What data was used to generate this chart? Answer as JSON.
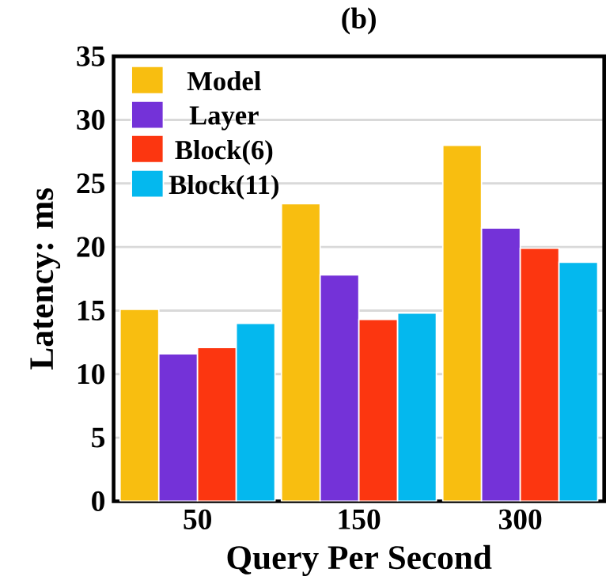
{
  "chart_data": {
    "type": "bar",
    "title": "(b)",
    "xlabel": "Query Per Second",
    "ylabel": "Latency: ms",
    "categories": [
      "50",
      "150",
      "300"
    ],
    "series": [
      {
        "name": "Model",
        "color": "#f8be10",
        "values": [
          15.1,
          23.4,
          28.0
        ]
      },
      {
        "name": "Layer",
        "color": "#7432d8",
        "values": [
          11.6,
          17.8,
          21.5
        ]
      },
      {
        "name": "Block(6)",
        "color": "#fc3610",
        "values": [
          12.1,
          14.3,
          19.9
        ]
      },
      {
        "name": "Block(11)",
        "color": "#04b8ee",
        "values": [
          14.0,
          14.8,
          18.8
        ]
      }
    ],
    "ylim": [
      0,
      35
    ],
    "yticks": [
      0,
      5,
      10,
      15,
      20,
      25,
      30,
      35
    ],
    "grid": "y",
    "legend": "top left"
  }
}
